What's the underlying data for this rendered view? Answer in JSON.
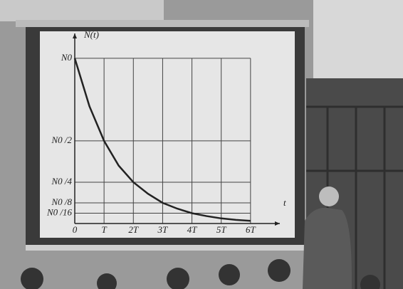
{
  "chart_data": {
    "type": "line",
    "y_label": "N(t)",
    "x_label": "t",
    "x": [
      0,
      0.5,
      1,
      1.5,
      2,
      2.5,
      3,
      3.5,
      4,
      4.5,
      5,
      5.5,
      6
    ],
    "series": [
      {
        "color": "#222222",
        "values": [
          1,
          0.71,
          0.5,
          0.35,
          0.25,
          0.18,
          0.125,
          0.09,
          0.0625,
          0.045,
          0.031,
          0.022,
          0.016
        ]
      }
    ],
    "xlim": [
      0,
      7
    ],
    "ylim": [
      0,
      1.15
    ],
    "xticks": [
      0,
      {
        "value": 1,
        "label": "T"
      },
      {
        "value": 2,
        "label": "2T"
      },
      {
        "value": 3,
        "label": "3T"
      },
      {
        "value": 4,
        "label": "4T"
      },
      {
        "value": 5,
        "label": "5T"
      },
      {
        "value": 6,
        "label": "6T"
      }
    ],
    "yticks": [
      {
        "value": 1,
        "label": "N0"
      },
      {
        "value": 0.5,
        "label": "N0 /2"
      },
      {
        "value": 0.25,
        "label": "N0 /4"
      },
      {
        "value": 0.125,
        "label": "N0 /8"
      },
      {
        "value": 0.0625,
        "label": "N0 /16"
      }
    ],
    "grid": true
  }
}
